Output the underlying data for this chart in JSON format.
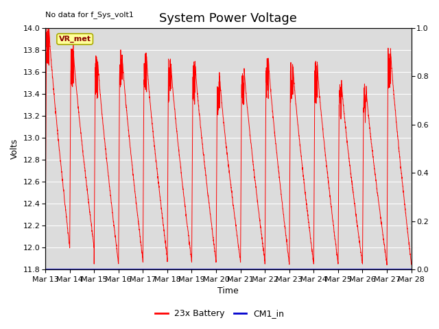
{
  "title": "System Power Voltage",
  "top_left_text": "No data for f_Sys_volt1",
  "annotation_text": "VR_met",
  "xlabel": "Time",
  "ylabel": "Volts",
  "ylim_left": [
    11.8,
    14.0
  ],
  "ylim_right": [
    0.0,
    1.0
  ],
  "yticks_left": [
    11.8,
    12.0,
    12.2,
    12.4,
    12.6,
    12.8,
    13.0,
    13.2,
    13.4,
    13.6,
    13.8,
    14.0
  ],
  "yticks_right": [
    0.0,
    0.2,
    0.4,
    0.6,
    0.8,
    1.0
  ],
  "x_tick_labels": [
    "Mar 13",
    "Mar 14",
    "Mar 15",
    "Mar 16",
    "Mar 17",
    "Mar 18",
    "Mar 19",
    "Mar 20",
    "Mar 21",
    "Mar 22",
    "Mar 23",
    "Mar 24",
    "Mar 25",
    "Mar 26",
    "Mar 27",
    "Mar 28"
  ],
  "battery_color": "#FF0000",
  "cm1_color": "#0000CD",
  "bg_color": "#DCDCDC",
  "annotation_bg": "#FFFF99",
  "annotation_border": "#AAAA00",
  "legend_label_battery": "23x Battery",
  "legend_label_cm1": "CM1_in",
  "title_fontsize": 13,
  "label_fontsize": 9,
  "tick_fontsize": 8
}
